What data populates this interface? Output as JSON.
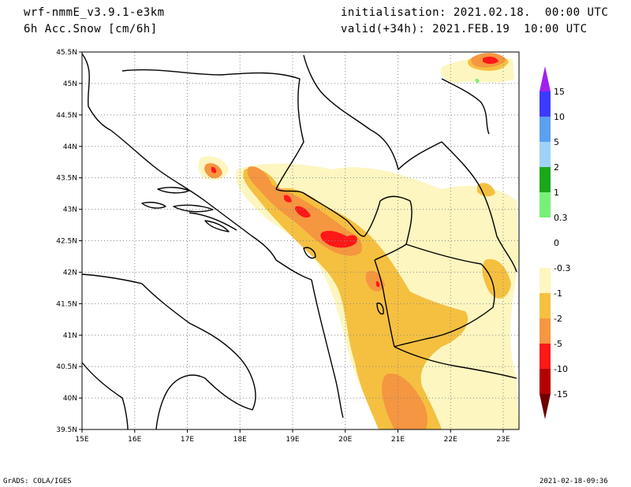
{
  "header": {
    "model": "wrf-nmmE_v3.9.1-e3km",
    "field": "6h Acc.Snow [cm/6h]",
    "init": "initialisation: 2021.02.18.  00:00 UTC",
    "valid": "valid(+34h): 2021.FEB.19  10:00 UTC"
  },
  "footer": {
    "credit": "GrADS: COLA/IGES",
    "timestamp": "2021-02-18-09:36"
  },
  "axes": {
    "lon_ticks": [
      "15E",
      "16E",
      "17E",
      "18E",
      "19E",
      "20E",
      "21E",
      "22E",
      "23E"
    ],
    "lat_ticks": [
      "45.5N",
      "45N",
      "44.5N",
      "44N",
      "43.5N",
      "43N",
      "42.5N",
      "42N",
      "41.5N",
      "41N",
      "40.5N",
      "40N",
      "39.5N"
    ],
    "lon_range": [
      15,
      23.3
    ],
    "lat_range": [
      39.5,
      45.5
    ]
  },
  "colorbar": {
    "labels": [
      "15",
      "10",
      "5",
      "2",
      "1",
      "0.3",
      "0",
      "-0.3",
      "-1",
      "-2",
      "-5",
      "-10",
      "-15"
    ],
    "colors": [
      "#3b3bff",
      "#5aa0f0",
      "#9fd2f8",
      "#1aa81a",
      "#78f078",
      "#ffffff",
      "#ffffff",
      "#fdf6c0",
      "#f5c040",
      "#f59640",
      "#ff1818",
      "#b40000",
      "#7a0000"
    ],
    "top_arrow_color": "#a020f0",
    "bottom_arrow_color": "#6e0000"
  },
  "colors": {
    "level_0_3": "#fdf6c0",
    "level_1": "#f5c040",
    "level_2": "#f59640",
    "level_5": "#ff1818",
    "level_10": "#b40000",
    "green_1": "#78f078"
  }
}
